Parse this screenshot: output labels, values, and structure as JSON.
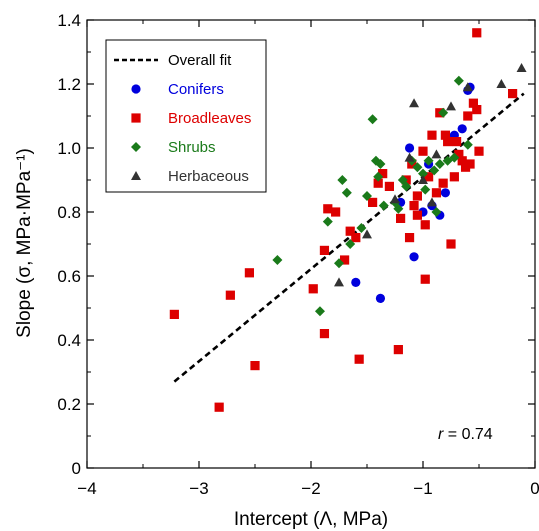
{
  "chart_data": {
    "type": "scatter",
    "xlabel": "Intercept (Λ, MPa)",
    "ylabel": "Slope (σ, MPa·MPa⁻¹)",
    "xlim": [
      -4,
      0
    ],
    "ylim": [
      0,
      1.4
    ],
    "xticks": [
      -4,
      -3,
      -2,
      -1,
      0
    ],
    "xtick_labels": [
      "−4",
      "−3",
      "−2",
      "−1",
      "0"
    ],
    "yticks": [
      0,
      0.2,
      0.4,
      0.6,
      0.8,
      1.0,
      1.2,
      1.4
    ],
    "ytick_labels": [
      "0",
      "0.2",
      "0.4",
      "0.6",
      "0.8",
      "1.0",
      "1.2",
      "1.4"
    ],
    "grid": false,
    "legend_position": "top-left",
    "legend": [
      {
        "label": "Overall fit",
        "color": "#000000",
        "marker": "dashed-line"
      },
      {
        "label": "Conifers",
        "color": "#0000dd",
        "marker": "circle"
      },
      {
        "label": "Broadleaves",
        "color": "#dd0000",
        "marker": "square"
      },
      {
        "label": "Shrubs",
        "color": "#1a7a1a",
        "marker": "diamond"
      },
      {
        "label": "Herbaceous",
        "color": "#333333",
        "marker": "triangle"
      }
    ],
    "annotation": {
      "prefix": "r",
      "text": " = 0.74"
    },
    "fit_line": {
      "x": [
        -3.22,
        -0.1
      ],
      "y": [
        0.27,
        1.17
      ]
    },
    "series": [
      {
        "name": "Conifers",
        "color": "#0000dd",
        "marker": "circle",
        "points": [
          [
            -1.6,
            0.58
          ],
          [
            -1.38,
            0.53
          ],
          [
            -1.08,
            0.66
          ],
          [
            -1.12,
            1.0
          ],
          [
            -0.95,
            0.95
          ],
          [
            -0.92,
            0.82
          ],
          [
            -0.85,
            0.79
          ],
          [
            -0.8,
            0.86
          ],
          [
            -0.72,
            1.04
          ],
          [
            -0.65,
            1.06
          ],
          [
            -0.6,
            1.18
          ],
          [
            -0.58,
            1.19
          ],
          [
            -1.2,
            0.83
          ],
          [
            -1.0,
            0.8
          ]
        ]
      },
      {
        "name": "Broadleaves",
        "color": "#dd0000",
        "marker": "square",
        "points": [
          [
            -3.22,
            0.48
          ],
          [
            -2.82,
            0.19
          ],
          [
            -2.72,
            0.54
          ],
          [
            -2.55,
            0.61
          ],
          [
            -2.5,
            0.32
          ],
          [
            -1.98,
            0.56
          ],
          [
            -1.88,
            0.42
          ],
          [
            -1.88,
            0.68
          ],
          [
            -1.85,
            0.81
          ],
          [
            -1.78,
            0.8
          ],
          [
            -1.7,
            0.65
          ],
          [
            -1.65,
            0.74
          ],
          [
            -1.6,
            0.72
          ],
          [
            -1.57,
            0.34
          ],
          [
            -1.45,
            0.83
          ],
          [
            -1.4,
            0.89
          ],
          [
            -1.36,
            0.92
          ],
          [
            -1.3,
            0.88
          ],
          [
            -1.22,
            0.37
          ],
          [
            -1.2,
            0.78
          ],
          [
            -1.15,
            0.9
          ],
          [
            -1.12,
            0.72
          ],
          [
            -1.1,
            0.95
          ],
          [
            -1.08,
            0.82
          ],
          [
            -1.05,
            0.85
          ],
          [
            -1.0,
            0.99
          ],
          [
            -0.98,
            0.59
          ],
          [
            -0.95,
            0.91
          ],
          [
            -0.92,
            1.04
          ],
          [
            -0.88,
            0.86
          ],
          [
            -0.85,
            1.11
          ],
          [
            -0.8,
            1.04
          ],
          [
            -0.78,
            1.02
          ],
          [
            -0.75,
            0.7
          ],
          [
            -0.72,
            0.91
          ],
          [
            -0.7,
            1.02
          ],
          [
            -0.65,
            0.96
          ],
          [
            -0.62,
            0.94
          ],
          [
            -0.6,
            1.1
          ],
          [
            -0.55,
            1.14
          ],
          [
            -0.52,
            1.12
          ],
          [
            -0.5,
            0.99
          ],
          [
            -0.52,
            1.36
          ],
          [
            -0.2,
            1.17
          ],
          [
            -1.05,
            0.79
          ],
          [
            -0.98,
            0.76
          ],
          [
            -0.82,
            0.89
          ],
          [
            -0.68,
            0.98
          ],
          [
            -0.58,
            0.95
          ]
        ]
      },
      {
        "name": "Shrubs",
        "color": "#1a7a1a",
        "marker": "diamond",
        "points": [
          [
            -2.3,
            0.65
          ],
          [
            -1.92,
            0.49
          ],
          [
            -1.85,
            0.77
          ],
          [
            -1.75,
            0.64
          ],
          [
            -1.72,
            0.9
          ],
          [
            -1.68,
            0.86
          ],
          [
            -1.65,
            0.7
          ],
          [
            -1.55,
            0.75
          ],
          [
            -1.5,
            0.85
          ],
          [
            -1.45,
            1.09
          ],
          [
            -1.42,
            0.96
          ],
          [
            -1.4,
            0.91
          ],
          [
            -1.38,
            0.95
          ],
          [
            -1.35,
            0.82
          ],
          [
            -1.25,
            0.83
          ],
          [
            -1.22,
            0.81
          ],
          [
            -1.18,
            0.9
          ],
          [
            -1.15,
            0.88
          ],
          [
            -1.1,
            0.96
          ],
          [
            -1.05,
            0.94
          ],
          [
            -1.0,
            0.92
          ],
          [
            -0.98,
            0.87
          ],
          [
            -0.95,
            0.96
          ],
          [
            -0.9,
            0.93
          ],
          [
            -0.85,
            0.95
          ],
          [
            -0.82,
            1.11
          ],
          [
            -0.78,
            0.96
          ],
          [
            -0.72,
            0.97
          ],
          [
            -0.68,
            1.21
          ],
          [
            -0.6,
            1.01
          ],
          [
            -0.88,
            0.8
          ]
        ]
      },
      {
        "name": "Herbaceous",
        "color": "#333333",
        "marker": "triangle",
        "points": [
          [
            -1.75,
            0.58
          ],
          [
            -1.5,
            0.73
          ],
          [
            -1.25,
            0.84
          ],
          [
            -1.08,
            1.14
          ],
          [
            -1.0,
            0.9
          ],
          [
            -0.92,
            0.83
          ],
          [
            -0.88,
            0.98
          ],
          [
            -0.75,
            1.13
          ],
          [
            -0.6,
            1.19
          ],
          [
            -0.3,
            1.2
          ],
          [
            -0.12,
            1.25
          ],
          [
            -1.12,
            0.97
          ]
        ]
      }
    ]
  }
}
